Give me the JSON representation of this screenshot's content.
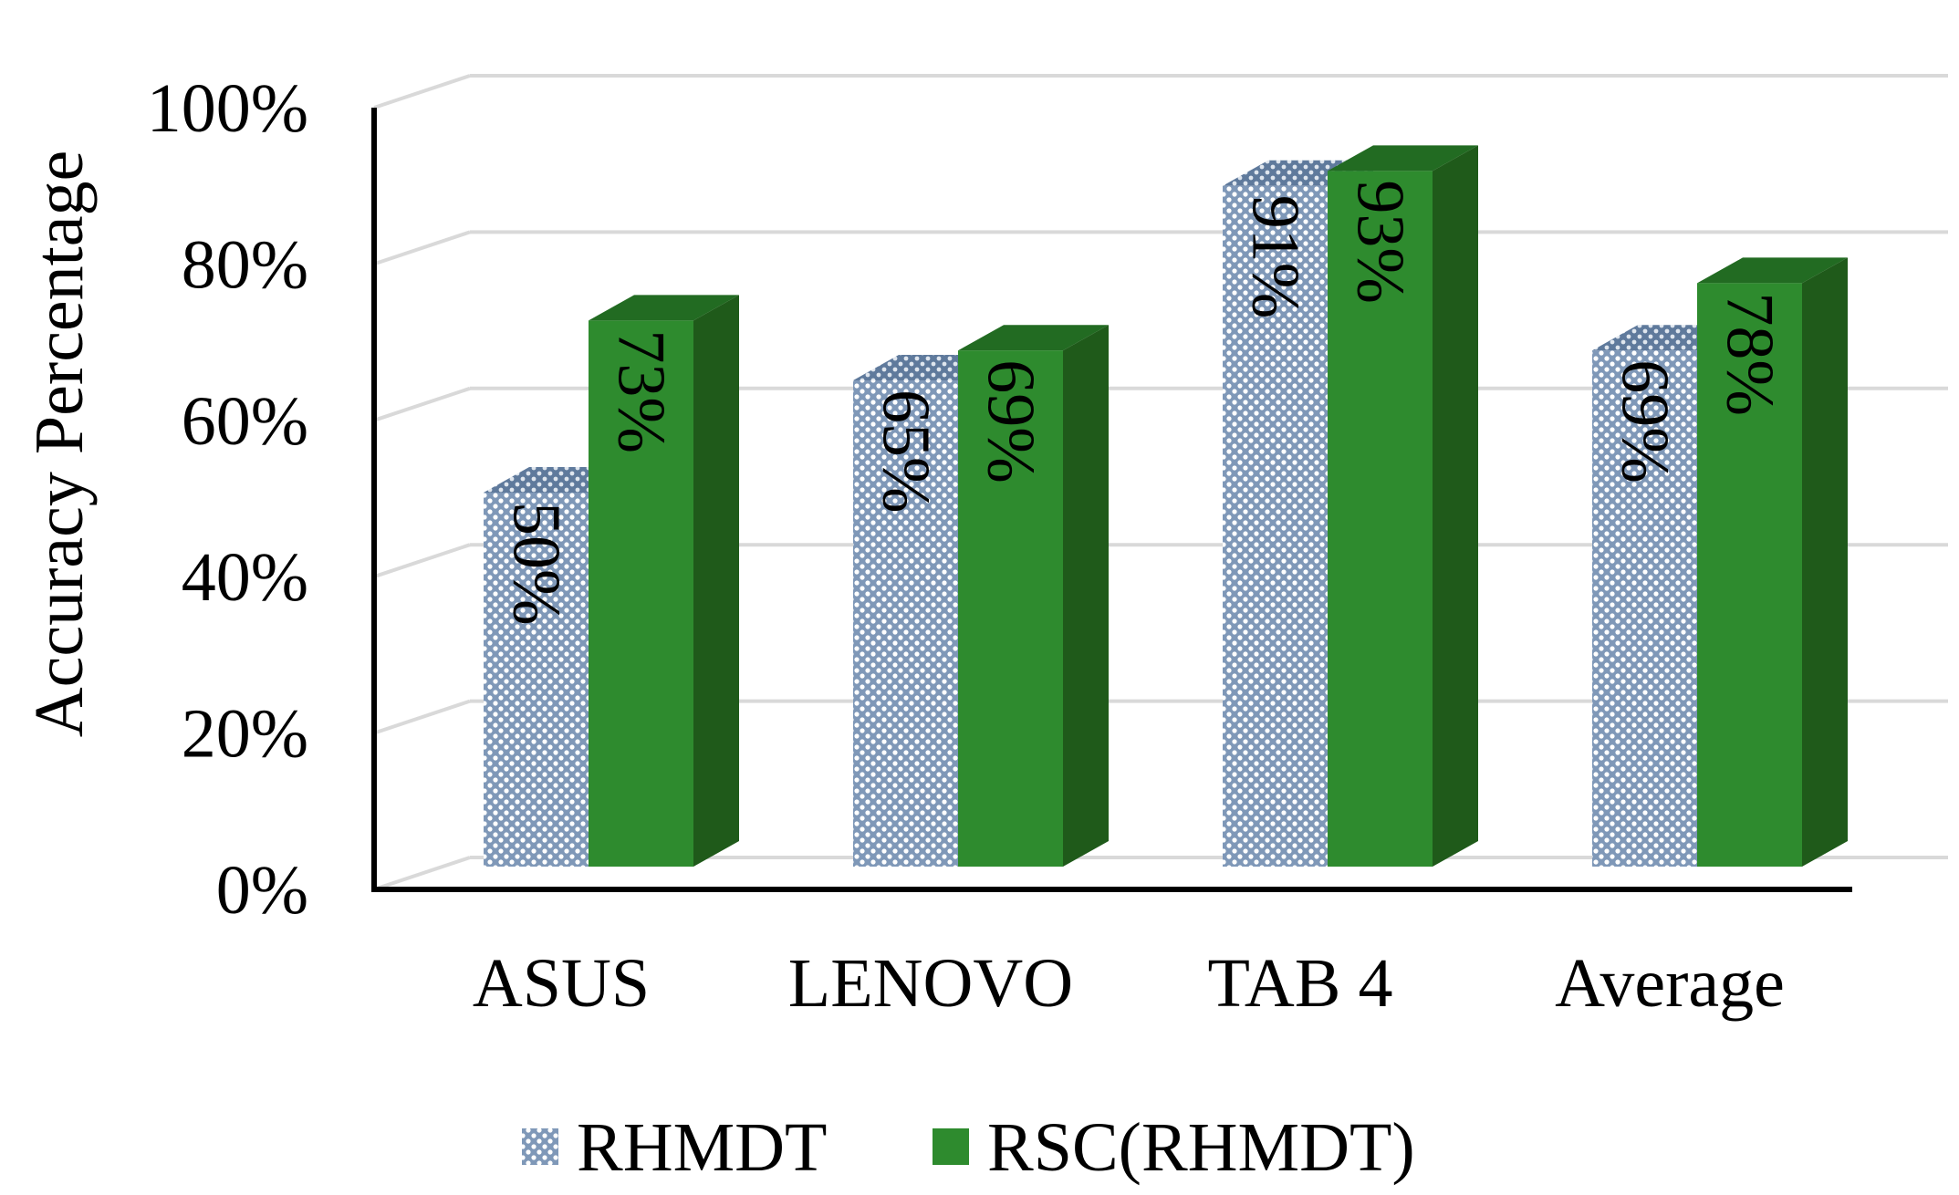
{
  "chart_data": {
    "type": "bar",
    "style": "3d-clustered-column",
    "title": "",
    "xlabel": "",
    "ylabel": "Accuracy Percentage",
    "ylim": [
      0,
      100
    ],
    "yticks": [
      "0%",
      "20%",
      "40%",
      "60%",
      "80%",
      "100%"
    ],
    "ytick_values": [
      0,
      20,
      40,
      60,
      80,
      100
    ],
    "categories": [
      "ASUS",
      "LENOVO",
      "TAB 4",
      "Average"
    ],
    "series": [
      {
        "name": "RHMDT",
        "values": [
          50,
          65,
          91,
          69
        ],
        "labels": [
          "50%",
          "65%",
          "91%",
          "69%"
        ],
        "color": "#9db3cc",
        "pattern": "dotted"
      },
      {
        "name": "RSC(RHMDT)",
        "values": [
          73,
          69,
          93,
          78
        ],
        "labels": [
          "73%",
          "69%",
          "93%",
          "78%"
        ],
        "color": "#2e7d2e"
      }
    ],
    "grid": true,
    "legend_position": "bottom"
  }
}
